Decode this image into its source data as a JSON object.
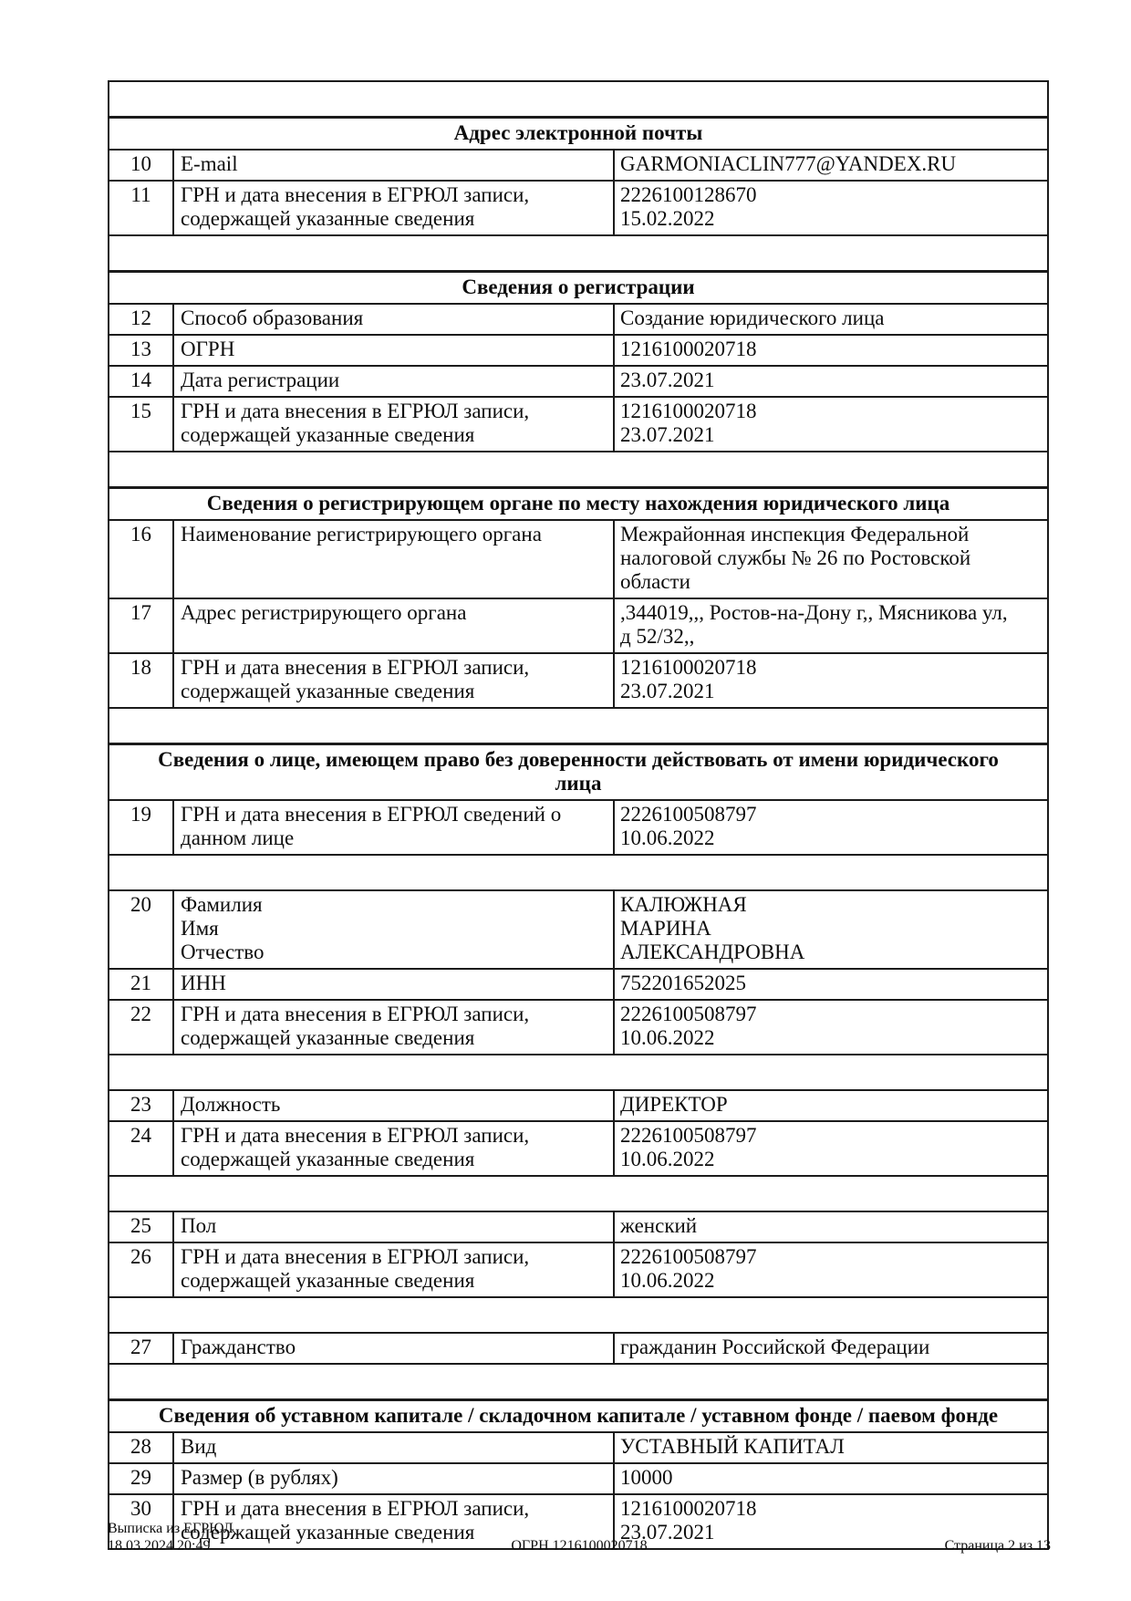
{
  "document": {
    "rows": [
      {
        "type": "spacer"
      },
      {
        "type": "section",
        "lines": [
          "Адрес электронной почты"
        ]
      },
      {
        "type": "data",
        "num": "10",
        "label": [
          "E-mail"
        ],
        "value": [
          "GARMONIACLIN777@YANDEX.RU"
        ]
      },
      {
        "type": "data",
        "num": "11",
        "label": [
          "ГРН и дата внесения в ЕГРЮЛ записи,",
          "содержащей указанные сведения"
        ],
        "value": [
          "2226100128670",
          "15.02.2022"
        ]
      },
      {
        "type": "spacer"
      },
      {
        "type": "section",
        "lines": [
          "Сведения о регистрации"
        ]
      },
      {
        "type": "data",
        "num": "12",
        "label": [
          "Способ образования"
        ],
        "value": [
          "Создание юридического лица"
        ]
      },
      {
        "type": "data",
        "num": "13",
        "label": [
          "ОГРН"
        ],
        "value": [
          "1216100020718"
        ]
      },
      {
        "type": "data",
        "num": "14",
        "label": [
          "Дата регистрации"
        ],
        "value": [
          "23.07.2021"
        ]
      },
      {
        "type": "data",
        "num": "15",
        "label": [
          "ГРН и дата внесения в ЕГРЮЛ записи,",
          "содержащей указанные сведения"
        ],
        "value": [
          "1216100020718",
          "23.07.2021"
        ]
      },
      {
        "type": "spacer"
      },
      {
        "type": "section",
        "lines": [
          "Сведения о регистрирующем органе по месту нахождения юридического лица"
        ]
      },
      {
        "type": "data",
        "num": "16",
        "label": [
          "Наименование регистрирующего органа"
        ],
        "value": [
          "Межрайонная инспекция Федеральной",
          "налоговой службы № 26 по Ростовской",
          "области"
        ]
      },
      {
        "type": "data",
        "num": "17",
        "label": [
          "Адрес регистрирующего органа"
        ],
        "value": [
          ",344019,,, Ростов-на-Дону г,, Мясникова ул,",
          "д 52/32,,"
        ]
      },
      {
        "type": "data",
        "num": "18",
        "label": [
          "ГРН и дата внесения в ЕГРЮЛ записи,",
          "содержащей указанные сведения"
        ],
        "value": [
          "1216100020718",
          "23.07.2021"
        ]
      },
      {
        "type": "spacer"
      },
      {
        "type": "section",
        "lines": [
          "Сведения о лице, имеющем право без доверенности действовать от имени юридического",
          "лица"
        ]
      },
      {
        "type": "data",
        "num": "19",
        "label": [
          "ГРН и дата внесения в ЕГРЮЛ сведений о",
          "данном лице"
        ],
        "value": [
          "2226100508797",
          "10.06.2022"
        ]
      },
      {
        "type": "spacer"
      },
      {
        "type": "data",
        "num": "20",
        "label": [
          "Фамилия",
          "Имя",
          "Отчество"
        ],
        "value": [
          "КАЛЮЖНАЯ",
          "МАРИНА",
          "АЛЕКСАНДРОВНА"
        ]
      },
      {
        "type": "data",
        "num": "21",
        "label": [
          "ИНН"
        ],
        "value": [
          "752201652025"
        ]
      },
      {
        "type": "data",
        "num": "22",
        "label": [
          "ГРН и дата внесения в ЕГРЮЛ записи,",
          "содержащей указанные сведения"
        ],
        "value": [
          "2226100508797",
          "10.06.2022"
        ]
      },
      {
        "type": "spacer"
      },
      {
        "type": "data",
        "num": "23",
        "label": [
          "Должность"
        ],
        "value": [
          "ДИРЕКТОР"
        ]
      },
      {
        "type": "data",
        "num": "24",
        "label": [
          "ГРН и дата внесения в ЕГРЮЛ записи,",
          "содержащей указанные сведения"
        ],
        "value": [
          "2226100508797",
          "10.06.2022"
        ]
      },
      {
        "type": "spacer"
      },
      {
        "type": "data",
        "num": "25",
        "label": [
          "Пол"
        ],
        "value": [
          "женский"
        ]
      },
      {
        "type": "data",
        "num": "26",
        "label": [
          "ГРН и дата внесения в ЕГРЮЛ записи,",
          "содержащей указанные сведения"
        ],
        "value": [
          "2226100508797",
          "10.06.2022"
        ]
      },
      {
        "type": "spacer"
      },
      {
        "type": "data",
        "num": "27",
        "label": [
          "Гражданство"
        ],
        "value": [
          "гражданин Российской Федерации"
        ]
      },
      {
        "type": "spacer"
      },
      {
        "type": "section",
        "lines": [
          "Сведения об уставном капитале / складочном капитале / уставном фонде / паевом фонде"
        ]
      },
      {
        "type": "data",
        "num": "28",
        "label": [
          "Вид"
        ],
        "value": [
          "УСТАВНЫЙ КАПИТАЛ"
        ]
      },
      {
        "type": "data",
        "num": "29",
        "label": [
          "Размер (в рублях)"
        ],
        "value": [
          "10000"
        ]
      },
      {
        "type": "data",
        "num": "30",
        "label": [
          "ГРН и дата внесения в ЕГРЮЛ записи,",
          "содержащей указанные сведения"
        ],
        "value": [
          "1216100020718",
          "23.07.2021"
        ]
      }
    ],
    "footer": {
      "doc_type": "Выписка из ЕГРЮЛ",
      "timestamp": "18.03.2024 20:49",
      "ogrn": "ОГРН 1216100020718",
      "page": "Страница 2 из 13"
    }
  }
}
